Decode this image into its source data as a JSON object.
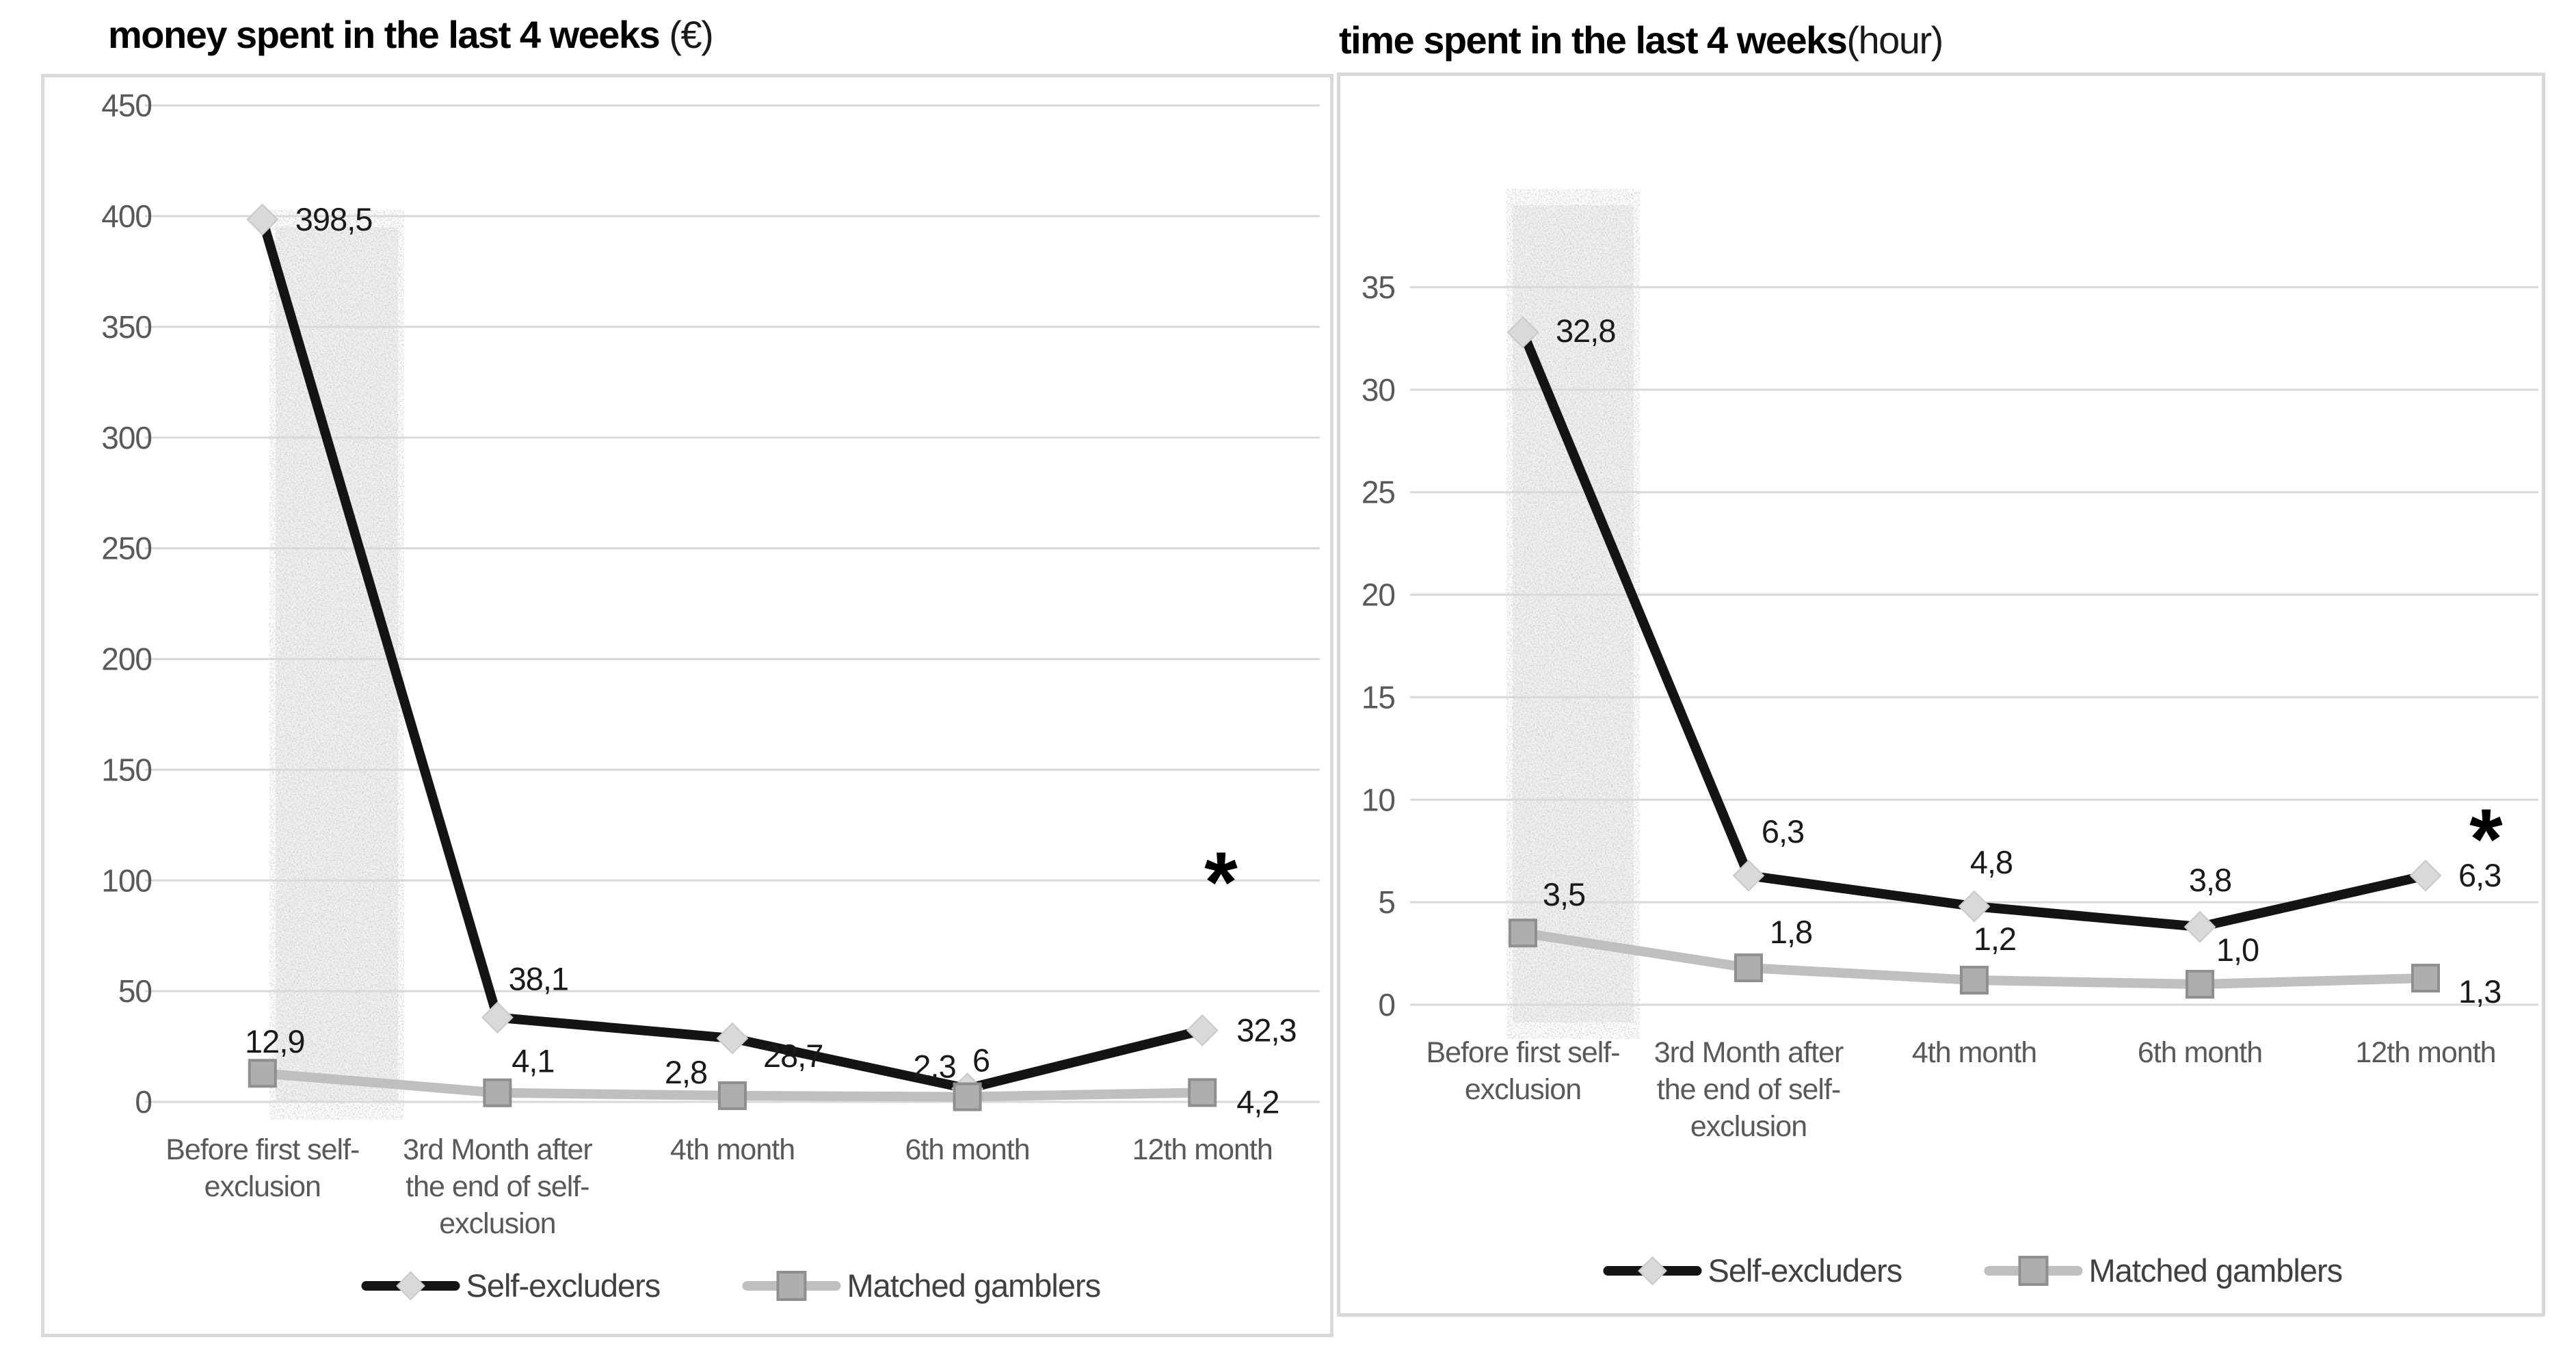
{
  "colors": {
    "series_self": "#141414",
    "series_matched": "#bfbfbf",
    "marker_diamond_fill": "#d9d9d9",
    "marker_diamond_stroke": "#c9c9c9",
    "marker_square_fill": "#aeaeae",
    "marker_square_stroke": "#8f8f8f",
    "gridline": "#d9d9d9",
    "panel_border": "#d9d9d9",
    "tick_label": "#595959",
    "category_label": "#595959",
    "data_label": "#1a1a1a",
    "legend_label": "#404040",
    "band_base": "#f1f1f1",
    "annotation_color": "#000000",
    "title": "#000000"
  },
  "charts": [
    {
      "title_main": "money spent in the last 4 weeks ",
      "title_suffix": "(€)",
      "chart_data": {
        "type": "line",
        "title": "money spent in the last 4 weeks (€)",
        "xlabel": "",
        "ylabel": "",
        "categories": [
          "Before first self-exclusion",
          "3rd Month after the end of self-exclusion",
          "4th month",
          "6th month",
          "12th month"
        ],
        "category_wrap": [
          [
            "Before first self-",
            "exclusion"
          ],
          [
            "3rd Month after",
            "the end of self-",
            "exclusion"
          ],
          [
            "4th month"
          ],
          [
            "6th month"
          ],
          [
            "12th month"
          ]
        ],
        "series": [
          {
            "name": "Self-excluders",
            "values": [
              398.5,
              38.1,
              28.7,
              6,
              32.3
            ],
            "point_labels": [
              "398,5",
              "38,1",
              "28,7",
              "6",
              "32,3"
            ],
            "marker": "diamond"
          },
          {
            "name": "Matched gamblers",
            "values": [
              12.9,
              4.1,
              2.8,
              2.3,
              4.2
            ],
            "point_labels": [
              "12,9",
              "4,1",
              "2,8",
              "2,3",
              "4,2"
            ],
            "marker": "square"
          }
        ],
        "yticks": [
          0,
          50,
          100,
          150,
          200,
          250,
          300,
          350,
          400,
          450
        ],
        "ylim": [
          0,
          455
        ],
        "grid": true,
        "legend_position": "bottom",
        "annotations": [
          {
            "text": "*",
            "near_category": "12th month"
          }
        ],
        "highlight_band": {
          "category": "Before first self-exclusion"
        }
      }
    },
    {
      "title_main": "time spent in the last 4 weeks",
      "title_suffix": "(hour)",
      "chart_data": {
        "type": "line",
        "title": "time spent in the last 4 weeks(hour)",
        "xlabel": "",
        "ylabel": "",
        "categories": [
          "Before first self-exclusion",
          "3rd Month after the end of self-exclusion",
          "4th month",
          "6th month",
          "12th month"
        ],
        "category_wrap": [
          [
            "Before first self-",
            "exclusion"
          ],
          [
            "3rd Month after",
            "the end of self-",
            "exclusion"
          ],
          [
            "4th month"
          ],
          [
            "6th month"
          ],
          [
            "12th month"
          ]
        ],
        "series": [
          {
            "name": "Self-excluders",
            "values": [
              32.8,
              6.3,
              4.8,
              3.8,
              6.3
            ],
            "point_labels": [
              "32,8",
              "6,3",
              "4,8",
              "3,8",
              "6,3"
            ],
            "marker": "diamond"
          },
          {
            "name": "Matched gamblers",
            "values": [
              3.5,
              1.8,
              1.2,
              1.0,
              1.3
            ],
            "point_labels": [
              "3,5",
              "1,8",
              "1,2",
              "1,0",
              "1,3"
            ],
            "marker": "square"
          }
        ],
        "yticks": [
          0,
          5,
          10,
          15,
          20,
          25,
          30,
          35
        ],
        "ylim": [
          0,
          39
        ],
        "grid": true,
        "legend_position": "bottom",
        "annotations": [
          {
            "text": "*",
            "near_category": "12th month"
          }
        ],
        "highlight_band": {
          "category": "Before first self-exclusion"
        }
      }
    }
  ]
}
